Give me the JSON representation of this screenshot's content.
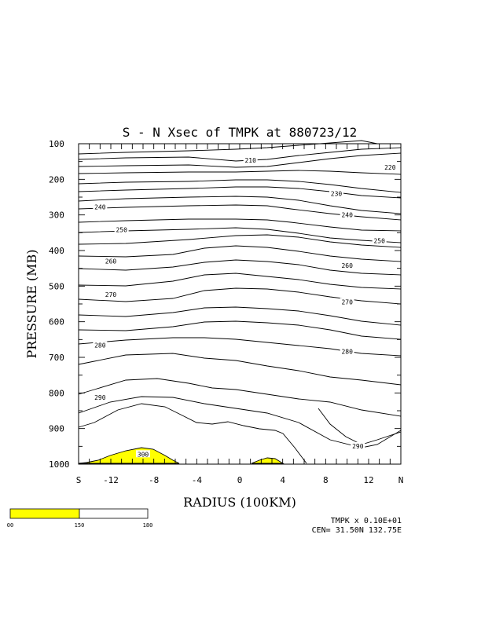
{
  "chart_data": {
    "type": "contour",
    "title": "S - N Xsec of TMPK at 880723/12",
    "xlabel": "RADIUS (100KM)",
    "ylabel": "PRESSURE (MB)",
    "x_range": [
      -15,
      15
    ],
    "y_range": [
      1000,
      100
    ],
    "x_ticks": [
      "S",
      "-12",
      "-8",
      "-4",
      "0",
      "4",
      "8",
      "12",
      "N"
    ],
    "y_ticks": [
      "100",
      "200",
      "300",
      "400",
      "500",
      "600",
      "700",
      "800",
      "900",
      "1000"
    ],
    "contour_labels": [
      {
        "text": "210",
        "x": 1,
        "p": 146
      },
      {
        "text": "220",
        "x": 14,
        "p": 166
      },
      {
        "text": "230",
        "x": 9,
        "p": 240
      },
      {
        "text": "240",
        "x": -13,
        "p": 278
      },
      {
        "text": "240",
        "x": 10,
        "p": 300
      },
      {
        "text": "250",
        "x": -11,
        "p": 341
      },
      {
        "text": "250",
        "x": 13,
        "p": 372
      },
      {
        "text": "260",
        "x": -12,
        "p": 430
      },
      {
        "text": "260",
        "x": 10,
        "p": 442
      },
      {
        "text": "270",
        "x": -12,
        "p": 523
      },
      {
        "text": "270",
        "x": 10,
        "p": 544
      },
      {
        "text": "280",
        "x": -13,
        "p": 666
      },
      {
        "text": "280",
        "x": 10,
        "p": 683
      },
      {
        "text": "290",
        "x": -13,
        "p": 813
      },
      {
        "text": "290",
        "x": 11,
        "p": 949
      },
      {
        "text": "300",
        "x": -9,
        "p": 972
      }
    ],
    "shading": {
      "color": "#ffff00",
      "threshold": 300
    },
    "colorbar": {
      "labels": [
        "00",
        "150",
        "180"
      ],
      "colors": [
        "#ffff00",
        "#ffffff"
      ]
    },
    "footer": {
      "line1": "TMPK x  0.10E+01",
      "line2": "CEN= 31.50N  132.75E"
    }
  }
}
